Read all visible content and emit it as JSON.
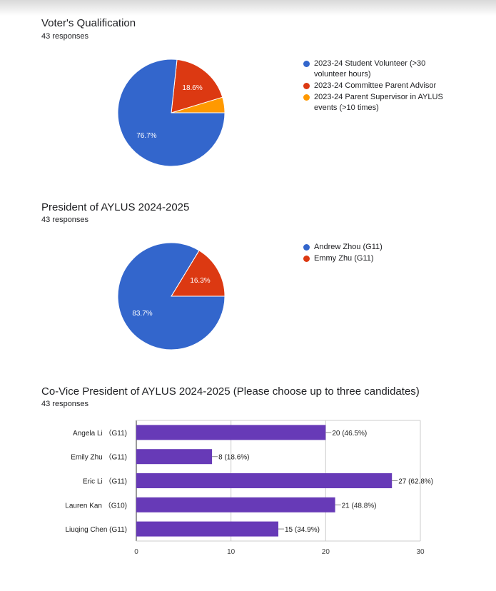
{
  "questions": [
    {
      "title": "Voter's Qualification",
      "responses": "43 responses",
      "legend": [
        {
          "label": "2023-24 Student Volunteer (>30 volunteer hours)",
          "color": "#3366cc"
        },
        {
          "label": "2023-24 Committee Parent Advisor",
          "color": "#dc3912"
        },
        {
          "label": "2023-24 Parent Supervisor in AYLUS events (>10 times)",
          "color": "#ff9900"
        }
      ]
    },
    {
      "title": "President of AYLUS 2024-2025",
      "responses": "43 responses",
      "legend": [
        {
          "label": "Andrew Zhou (G11)",
          "color": "#3366cc"
        },
        {
          "label": "Emmy Zhu (G11)",
          "color": "#dc3912"
        }
      ]
    },
    {
      "title": "Co-Vice President of AYLUS 2024-2025 (Please choose up to three candidates)",
      "responses": "43 responses"
    }
  ],
  "chart_data": [
    {
      "type": "pie",
      "labels": [
        "2023-24 Student Volunteer (>30 volunteer hours)",
        "2023-24 Committee Parent Advisor",
        "2023-24 Parent Supervisor in AYLUS events (>10 times)"
      ],
      "values": [
        76.7,
        18.6,
        4.7
      ],
      "slice_labels": [
        "76.7%",
        "18.6%",
        ""
      ],
      "colors": [
        "#3366cc",
        "#dc3912",
        "#ff9900"
      ],
      "legend_position": "right"
    },
    {
      "type": "pie",
      "labels": [
        "Andrew Zhou (G11)",
        "Emmy Zhu (G11)"
      ],
      "values": [
        83.7,
        16.3
      ],
      "slice_labels": [
        "83.7%",
        "16.3%"
      ],
      "colors": [
        "#3366cc",
        "#dc3912"
      ],
      "legend_position": "right"
    },
    {
      "type": "bar",
      "orientation": "horizontal",
      "categories": [
        "Angela Li （G11)",
        "Emily Zhu （G11)",
        "Eric Li （G11)",
        "Lauren Kan （G10)",
        "Liuqing Chen (G11)"
      ],
      "values": [
        20,
        8,
        27,
        21,
        15
      ],
      "value_labels": [
        "20 (46.5%)",
        "8 (18.6%)",
        "27 (62.8%)",
        "21 (48.8%)",
        "15 (34.9%)"
      ],
      "xlim": [
        0,
        30
      ],
      "xticks": [
        0,
        10,
        20,
        30
      ],
      "bar_color": "#673ab7",
      "grid": true
    }
  ]
}
